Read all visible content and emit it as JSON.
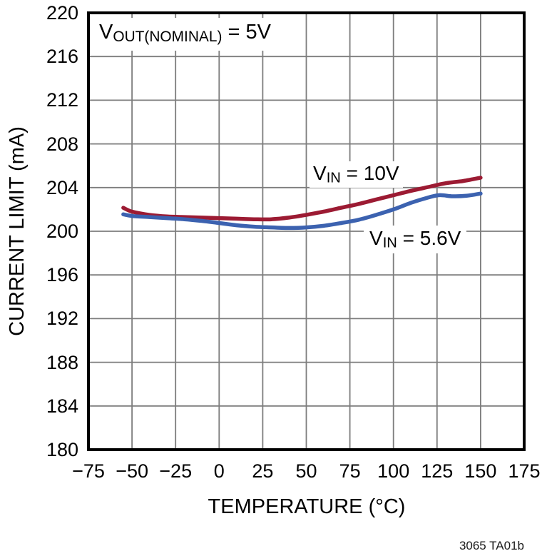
{
  "figure": {
    "watermark": "3065 TA01b"
  },
  "chart_data": {
    "type": "line",
    "title": "",
    "xlabel": "TEMPERATURE (°C)",
    "ylabel": "CURRENT LIMIT (mA)",
    "xlim": [
      -75,
      175
    ],
    "ylim": [
      180,
      220
    ],
    "xticks": [
      -75,
      -50,
      -25,
      0,
      25,
      50,
      75,
      100,
      125,
      150,
      175
    ],
    "xtick_labels": [
      "−75",
      "−50",
      "−25",
      "0",
      "25",
      "50",
      "75",
      "100",
      "125",
      "150",
      "175"
    ],
    "yticks": [
      180,
      184,
      188,
      192,
      196,
      200,
      204,
      208,
      212,
      216,
      220
    ],
    "ytick_labels": [
      "180",
      "184",
      "188",
      "192",
      "196",
      "200",
      "204",
      "208",
      "212",
      "216",
      "220"
    ],
    "grid": true,
    "grid_color": "#7d7d7d",
    "frame_color": "#000000",
    "legend_position": "inline-labels",
    "annotation": {
      "base": "V",
      "sub": "OUT(NOMINAL)",
      "rest": " = 5V"
    },
    "series": [
      {
        "name": "VIN = 10V",
        "label": {
          "base": "V",
          "sub": "IN",
          "rest": " = 10V"
        },
        "color": "#9c1b33",
        "x": [
          -55,
          -50,
          -40,
          -30,
          -20,
          -10,
          0,
          10,
          20,
          30,
          40,
          50,
          60,
          70,
          80,
          90,
          100,
          110,
          120,
          130,
          140,
          150
        ],
        "y": [
          202.15,
          201.8,
          201.5,
          201.35,
          201.3,
          201.25,
          201.2,
          201.15,
          201.1,
          201.1,
          201.25,
          201.5,
          201.8,
          202.15,
          202.5,
          202.9,
          203.3,
          203.7,
          204.05,
          204.4,
          204.6,
          204.9
        ]
      },
      {
        "name": "VIN = 5.6V",
        "label": {
          "base": "V",
          "sub": "IN",
          "rest": " = 5.6V"
        },
        "color": "#3c62b0",
        "x": [
          -55,
          -50,
          -40,
          -30,
          -20,
          -10,
          0,
          10,
          20,
          30,
          40,
          50,
          60,
          70,
          80,
          90,
          100,
          110,
          118,
          126,
          134,
          142,
          150
        ],
        "y": [
          201.55,
          201.4,
          201.3,
          201.2,
          201.1,
          200.95,
          200.75,
          200.55,
          200.42,
          200.35,
          200.3,
          200.35,
          200.5,
          200.75,
          201.05,
          201.5,
          202.0,
          202.6,
          203.0,
          203.3,
          203.2,
          203.25,
          203.45
        ]
      }
    ]
  }
}
